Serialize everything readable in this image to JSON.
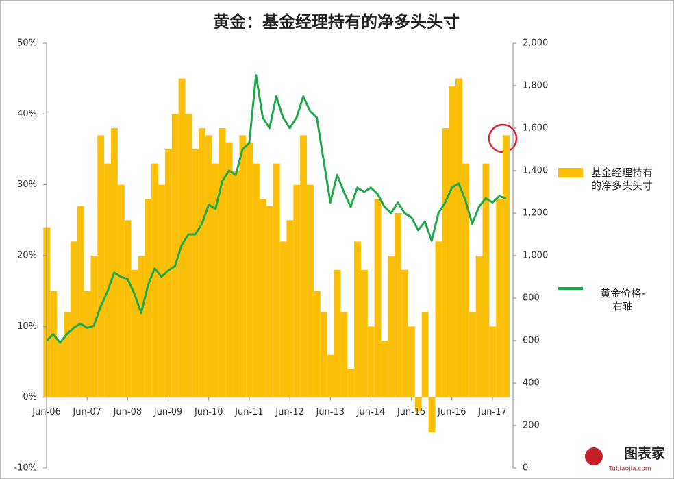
{
  "chart_data": {
    "type": "combo",
    "title": "黄金：基金经理持有的净多头头寸",
    "categories": [
      "Jun-06",
      null,
      null,
      null,
      null,
      null,
      "Jun-07",
      null,
      null,
      null,
      null,
      null,
      "Jun-08",
      null,
      null,
      null,
      null,
      null,
      "Jun-09",
      null,
      null,
      null,
      null,
      null,
      "Jun-10",
      null,
      null,
      null,
      null,
      null,
      "Jun-11",
      null,
      null,
      null,
      null,
      null,
      "Jun-12",
      null,
      null,
      null,
      null,
      null,
      "Jun-13",
      null,
      null,
      null,
      null,
      null,
      "Jun-14",
      null,
      null,
      null,
      null,
      null,
      "Jun-15",
      null,
      null,
      null,
      null,
      null,
      "Jun-16",
      null,
      null,
      null,
      null,
      null,
      "Jun-17",
      null,
      null
    ],
    "series": [
      {
        "name": "基金经理持有的净多头头寸",
        "type": "bar",
        "color": "#fbbf07",
        "values": [
          24,
          15,
          8,
          12,
          22,
          27,
          15,
          20,
          37,
          33,
          38,
          30,
          25,
          18,
          20,
          28,
          33,
          30,
          35,
          40,
          45,
          40,
          35,
          38,
          37,
          33,
          38,
          36,
          32,
          37,
          36,
          33,
          28,
          27,
          33,
          22,
          25,
          30,
          37,
          30,
          15,
          12,
          6,
          18,
          12,
          4,
          22,
          18,
          10,
          28,
          8,
          20,
          26,
          18,
          10,
          -2,
          12,
          -5,
          22,
          38,
          44,
          45,
          33,
          12,
          20,
          33,
          10,
          28,
          37
        ]
      },
      {
        "name": "黄金价格-右轴",
        "type": "line",
        "axis": "y2",
        "color": "#1ea84a",
        "values": [
          600,
          630,
          590,
          630,
          660,
          680,
          660,
          670,
          760,
          830,
          920,
          900,
          890,
          820,
          730,
          860,
          940,
          900,
          930,
          950,
          1050,
          1100,
          1100,
          1150,
          1240,
          1220,
          1350,
          1400,
          1380,
          1500,
          1530,
          1850,
          1650,
          1600,
          1750,
          1650,
          1600,
          1650,
          1750,
          1680,
          1650,
          1450,
          1250,
          1380,
          1300,
          1230,
          1320,
          1300,
          1320,
          1290,
          1230,
          1200,
          1250,
          1200,
          1180,
          1120,
          1160,
          1070,
          1200,
          1250,
          1320,
          1340,
          1260,
          1150,
          1230,
          1270,
          1250,
          1280,
          1270
        ]
      }
    ],
    "ylim": [
      -10,
      50
    ],
    "yticks": [
      {
        "value": -10,
        "label": "-10%"
      },
      {
        "value": 0,
        "label": "0%"
      },
      {
        "value": 10,
        "label": "10%"
      },
      {
        "value": 20,
        "label": "20%"
      },
      {
        "value": 30,
        "label": "30%"
      },
      {
        "value": 40,
        "label": "40%"
      },
      {
        "value": 50,
        "label": "50%"
      }
    ],
    "y2lim": [
      0,
      2000
    ],
    "y2ticks": [
      0,
      200,
      400,
      600,
      800,
      {
        "value": 1000,
        "label": "1,000"
      },
      {
        "value": 1200,
        "label": "1,200"
      },
      {
        "value": 1400,
        "label": "1,400"
      },
      {
        "value": 1600,
        "label": "1,600"
      },
      {
        "value": 1800,
        "label": "1,800"
      },
      {
        "value": 2000,
        "label": "2,000"
      }
    ],
    "grid": false,
    "watermark": "图表家",
    "watermark_url": "Tubiaojia.com"
  }
}
